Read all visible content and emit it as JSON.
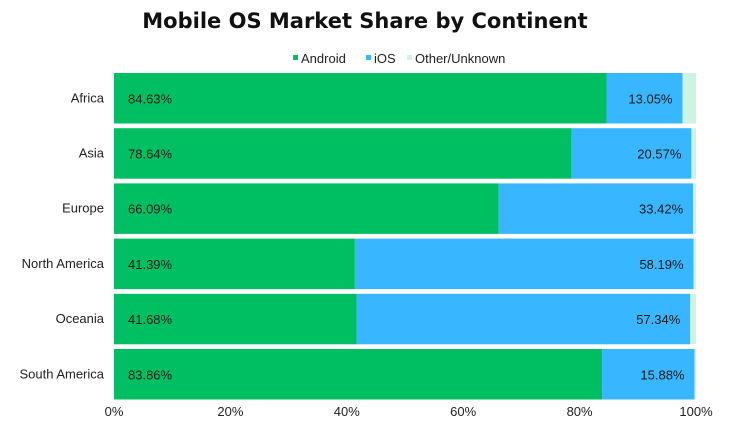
{
  "chart_data": {
    "type": "bar",
    "orientation": "horizontal",
    "stacked": true,
    "title": "Mobile OS Market Share by Continent",
    "xlabel": "",
    "ylabel": "",
    "xlim": [
      0,
      100
    ],
    "x_ticks": [
      "0%",
      "20%",
      "40%",
      "60%",
      "80%",
      "100%"
    ],
    "grid": false,
    "legend_position": "top",
    "categories": [
      "Africa",
      "Asia",
      "Europe",
      "North America",
      "Oceania",
      "South America"
    ],
    "series": [
      {
        "name": "Android",
        "color": "#00bf63",
        "values": [
          84.63,
          78.64,
          66.09,
          41.39,
          41.68,
          83.86
        ],
        "labels": [
          "84.63%",
          "78.64%",
          "66.09%",
          "41.39%",
          "41.68%",
          "83.86%"
        ]
      },
      {
        "name": "iOS",
        "color": "#38b6ff",
        "values": [
          13.05,
          20.57,
          33.42,
          58.19,
          57.34,
          15.88
        ],
        "labels": [
          "13.05%",
          "20.57%",
          "33.42%",
          "58.19%",
          "57.34%",
          "15.88%"
        ]
      },
      {
        "name": "Other/Unknown",
        "color": "#cdf3e2",
        "values": [
          2.32,
          0.79,
          0.49,
          0.42,
          0.98,
          0.26
        ]
      }
    ]
  }
}
